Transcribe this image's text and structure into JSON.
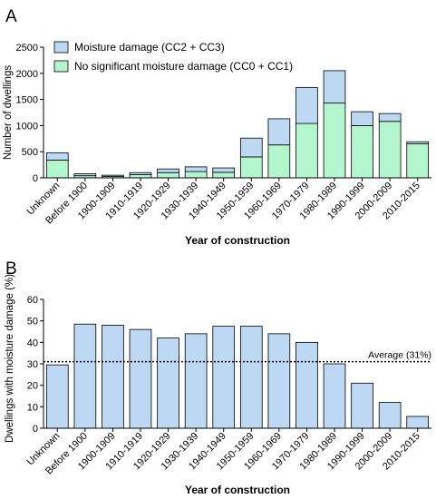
{
  "chart_data": [
    {
      "panel_label": "A",
      "type": "bar",
      "stacked": true,
      "categories": [
        "Unknown",
        "Before 1900",
        "1900-1909",
        "1910-1919",
        "1920-1929",
        "1930-1939",
        "1940-1949",
        "1950-1959",
        "1960-1969",
        "1970-1979",
        "1980-1989",
        "1990-1999",
        "2000-2009",
        "2010-2015"
      ],
      "series": [
        {
          "name": "No significant moisture damage (CC0 + CC1)",
          "color": "#b3f5cc",
          "values": [
            340,
            40,
            25,
            60,
            100,
            120,
            105,
            400,
            630,
            1040,
            1430,
            1000,
            1080,
            650
          ]
        },
        {
          "name": "Moisture damage (CC2 + CC3)",
          "color": "#bcd8f2",
          "values": [
            140,
            40,
            25,
            40,
            70,
            90,
            85,
            360,
            500,
            690,
            620,
            265,
            150,
            40
          ]
        }
      ],
      "xlabel": "Year of  construction",
      "ylabel": "Number of dwellings",
      "ylim": [
        0,
        2500
      ],
      "yticks": [
        0,
        500,
        1000,
        1500,
        2000,
        2500
      ],
      "legend": "top-left"
    },
    {
      "panel_label": "B",
      "type": "bar",
      "categories": [
        "Unknown",
        "Before 1900",
        "1900-1909",
        "1910-1919",
        "1920-1929",
        "1930-1939",
        "1940-1949",
        "1950-1959",
        "1960-1969",
        "1970-1979",
        "1980-1989",
        "1990-1999",
        "2000-2009",
        "2010-2015"
      ],
      "series": [
        {
          "color": "#bcd8f2",
          "values": [
            29.5,
            48.5,
            48,
            46,
            42,
            44,
            47.5,
            47.5,
            44,
            40,
            30,
            21,
            12,
            5.5
          ]
        }
      ],
      "reference_line": {
        "value": 31,
        "label": "Average (31%)"
      },
      "xlabel": "Year of construction",
      "ylabel": "Dwellings with moisture damage (%)",
      "ylim": [
        0,
        60
      ],
      "yticks": [
        0,
        10,
        20,
        30,
        40,
        50,
        60
      ]
    }
  ]
}
